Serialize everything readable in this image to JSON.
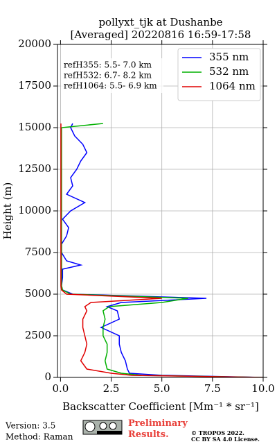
{
  "chart_data": {
    "type": "line",
    "title": "pollyxt_tjk at Dushanbe",
    "subtitle": "[Averaged] 20220816 16:59-17:58",
    "x_label": "Backscatter Coefficient [Mm⁻¹ * sr⁻¹]",
    "y_label": "Height (m)",
    "heights": [
      0,
      125,
      250,
      500,
      1000,
      1500,
      2000,
      2500,
      3000,
      3500,
      4000,
      4250,
      4500,
      4750,
      5000,
      5250,
      5500,
      6000,
      6500,
      6750,
      7000,
      7500,
      8000,
      8500,
      9000,
      9500,
      10000,
      10500,
      11000,
      11500,
      12000,
      12500,
      13000,
      13500,
      14000,
      14500,
      15000,
      15250
    ],
    "series": [
      {
        "name": "355 nm",
        "color": "#0000ff",
        "values": [
          10,
          5,
          3.4,
          3.3,
          3.2,
          3.0,
          2.9,
          2.9,
          2.0,
          2.9,
          2.8,
          2.3,
          3.0,
          7.2,
          0.6,
          0.1,
          0.05,
          0.1,
          0.1,
          1.0,
          0.3,
          0.05,
          0.05,
          0.3,
          0.4,
          0.1,
          0.5,
          1.2,
          0.3,
          0.6,
          0.5,
          0.8,
          1.0,
          1.3,
          1.1,
          0.7,
          0.5,
          0.6
        ]
      },
      {
        "name": "532 nm",
        "color": "#00b000",
        "values": [
          10,
          4,
          3.0,
          2.3,
          2.2,
          2.3,
          2.3,
          2.1,
          2.1,
          2.2,
          2.1,
          2.4,
          5.0,
          6.3,
          0.5,
          0.1,
          0.05,
          0.05,
          0.05,
          0.05,
          0.05,
          0.05,
          0.05,
          0.05,
          0.05,
          0.05,
          0.05,
          0.05,
          0.05,
          0.05,
          0.05,
          0.05,
          0.05,
          0.05,
          0.05,
          0.05,
          0.05,
          2.1
        ]
      },
      {
        "name": "1064 nm",
        "color": "#e00000",
        "values": [
          10,
          3.5,
          2.5,
          1.3,
          1.0,
          1.2,
          1.3,
          1.2,
          1.1,
          1.1,
          1.3,
          1.2,
          1.5,
          5.0,
          0.3,
          0.05,
          0.02,
          0.02,
          0.02,
          0.02,
          0.02,
          0.02,
          0.02,
          0.02,
          0.02,
          0.02,
          0.02,
          0.02,
          0.02,
          0.02,
          0.02,
          0.02,
          0.02,
          0.02,
          0.02,
          0.02,
          0.02,
          0.02
        ]
      }
    ],
    "xlim": [
      -0.15,
      10
    ],
    "xticks": [
      {
        "value": 0,
        "label": "0.0"
      },
      {
        "value": 2.5,
        "label": "2.5"
      },
      {
        "value": 5,
        "label": "5.0"
      },
      {
        "value": 7.5,
        "label": "7.5"
      },
      {
        "value": 10,
        "label": "10.0"
      }
    ],
    "ylim": [
      0,
      20000
    ],
    "yticks": [
      0,
      2500,
      5000,
      7500,
      10000,
      12500,
      15000,
      17500,
      20000
    ],
    "grid": true,
    "legend": "upper right",
    "annotations": [
      "refH355:  5.5- 7.0 km",
      "refH532:  6.7- 8.2 km",
      "refH1064:  5.5- 6.9 km"
    ]
  },
  "footer": {
    "version": "Version: 3.5",
    "method": "Method: Raman",
    "status": "Preliminary Results.",
    "copyright": "© TROPOS 2022.",
    "license": "CC BY SA 4.0 License."
  }
}
